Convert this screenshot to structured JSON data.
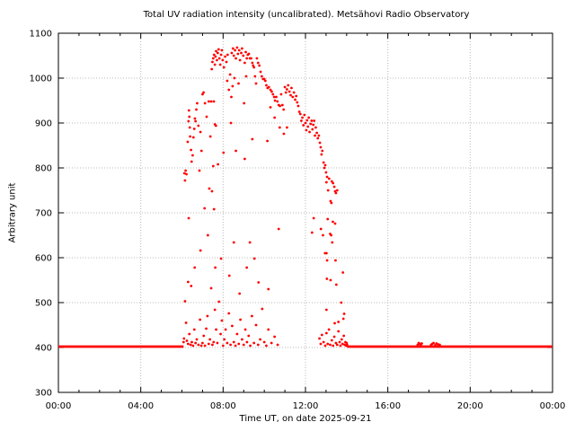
{
  "chart_data": {
    "type": "scatter",
    "title": "Total UV radiation intensity (uncalibrated). Metsähovi Radio Observatory",
    "xlabel": "Time UT, on date 2025-09-21",
    "ylabel": "Arbitrary unit",
    "x_range_hours": [
      0,
      24
    ],
    "ylim": [
      300,
      1100
    ],
    "grid": "dotted-at-major-ticks",
    "legend": "none",
    "x_ticks": [
      {
        "hour": 0,
        "label": "00:00"
      },
      {
        "hour": 4,
        "label": "04:00"
      },
      {
        "hour": 8,
        "label": "08:00"
      },
      {
        "hour": 12,
        "label": "12:00"
      },
      {
        "hour": 16,
        "label": "16:00"
      },
      {
        "hour": 20,
        "label": "20:00"
      },
      {
        "hour": 24,
        "label": "00:00"
      }
    ],
    "x_minor_step_hours": 1,
    "y_ticks": [
      300,
      400,
      500,
      600,
      700,
      800,
      900,
      1000,
      1100
    ],
    "colors": {
      "marker": "#ff0000",
      "grid": "#b8b8b8",
      "axis": "#000000",
      "background": "#ffffff"
    },
    "marker": {
      "shape": "filled-circle",
      "radius_px": 1.4
    },
    "baseline_segments": [
      {
        "start_hour": 0.0,
        "end_hour": 6.08,
        "value": 402
      },
      {
        "start_hour": 14.02,
        "end_hour": 24.0,
        "value": 402
      }
    ],
    "points": [
      [
        6.08,
        412
      ],
      [
        6.1,
        420
      ],
      [
        6.12,
        788
      ],
      [
        6.15,
        772
      ],
      [
        6.18,
        794
      ],
      [
        6.22,
        786
      ],
      [
        6.28,
        858
      ],
      [
        6.32,
        904
      ],
      [
        6.34,
        928
      ],
      [
        6.36,
        914
      ],
      [
        6.38,
        890
      ],
      [
        6.4,
        870
      ],
      [
        6.44,
        840
      ],
      [
        6.47,
        814
      ],
      [
        6.52,
        828
      ],
      [
        6.56,
        868
      ],
      [
        6.6,
        887
      ],
      [
        6.63,
        910
      ],
      [
        6.66,
        904
      ],
      [
        6.7,
        930
      ],
      [
        6.74,
        944
      ],
      [
        6.8,
        894
      ],
      [
        6.85,
        794
      ],
      [
        6.9,
        880
      ],
      [
        6.95,
        838
      ],
      [
        7.0,
        964
      ],
      [
        7.05,
        968
      ],
      [
        7.12,
        944
      ],
      [
        7.2,
        914
      ],
      [
        7.3,
        948
      ],
      [
        7.33,
        754
      ],
      [
        7.38,
        870
      ],
      [
        7.42,
        948
      ],
      [
        7.46,
        748
      ],
      [
        7.52,
        804
      ],
      [
        7.55,
        948
      ],
      [
        7.6,
        897
      ],
      [
        7.65,
        894
      ],
      [
        7.75,
        808
      ],
      [
        7.45,
        1020
      ],
      [
        7.48,
        1036
      ],
      [
        7.52,
        1044
      ],
      [
        7.56,
        1052
      ],
      [
        7.6,
        1030
      ],
      [
        7.63,
        1048
      ],
      [
        7.66,
        1060
      ],
      [
        7.7,
        1040
      ],
      [
        7.74,
        1056
      ],
      [
        7.78,
        1064
      ],
      [
        7.82,
        1044
      ],
      [
        7.86,
        1030
      ],
      [
        7.9,
        1052
      ],
      [
        7.94,
        1062
      ],
      [
        7.98,
        1040
      ],
      [
        8.04,
        1024
      ],
      [
        8.1,
        1048
      ],
      [
        8.16,
        1036
      ],
      [
        8.22,
        1052
      ],
      [
        8.2,
        994
      ],
      [
        8.28,
        974
      ],
      [
        8.34,
        1008
      ],
      [
        8.4,
        958
      ],
      [
        8.46,
        982
      ],
      [
        8.55,
        1000
      ],
      [
        8.75,
        988
      ],
      [
        9.02,
        944
      ],
      [
        9.12,
        1004
      ],
      [
        8.02,
        834
      ],
      [
        8.38,
        900
      ],
      [
        8.62,
        838
      ],
      [
        9.05,
        820
      ],
      [
        9.42,
        864
      ],
      [
        8.42,
        1056
      ],
      [
        8.48,
        1066
      ],
      [
        8.52,
        1050
      ],
      [
        8.58,
        1062
      ],
      [
        8.62,
        1044
      ],
      [
        8.68,
        1068
      ],
      [
        8.72,
        1054
      ],
      [
        8.78,
        1062
      ],
      [
        8.82,
        1040
      ],
      [
        8.88,
        1056
      ],
      [
        8.92,
        1066
      ],
      [
        8.98,
        1050
      ],
      [
        9.05,
        1034
      ],
      [
        9.1,
        1058
      ],
      [
        9.15,
        1044
      ],
      [
        9.2,
        1052
      ],
      [
        9.25,
        1054
      ],
      [
        9.3,
        1044
      ],
      [
        9.36,
        1044
      ],
      [
        9.42,
        1034
      ],
      [
        9.46,
        1028
      ],
      [
        9.5,
        1024
      ],
      [
        9.55,
        1004
      ],
      [
        9.6,
        988
      ],
      [
        9.64,
        1044
      ],
      [
        9.7,
        1034
      ],
      [
        9.76,
        1028
      ],
      [
        9.82,
        1014
      ],
      [
        9.88,
        1004
      ],
      [
        9.94,
        998
      ],
      [
        10.0,
        998
      ],
      [
        10.05,
        994
      ],
      [
        10.1,
        984
      ],
      [
        10.16,
        978
      ],
      [
        10.22,
        980
      ],
      [
        10.3,
        974
      ],
      [
        10.36,
        970
      ],
      [
        10.42,
        964
      ],
      [
        10.48,
        958
      ],
      [
        10.52,
        950
      ],
      [
        10.58,
        958
      ],
      [
        10.64,
        948
      ],
      [
        10.7,
        940
      ],
      [
        10.76,
        938
      ],
      [
        10.82,
        964
      ],
      [
        10.88,
        940
      ],
      [
        10.94,
        930
      ],
      [
        10.15,
        860
      ],
      [
        10.3,
        935
      ],
      [
        10.5,
        912
      ],
      [
        10.75,
        890
      ],
      [
        10.95,
        876
      ],
      [
        11.1,
        890
      ],
      [
        11.0,
        980
      ],
      [
        11.05,
        968
      ],
      [
        11.1,
        975
      ],
      [
        11.16,
        984
      ],
      [
        11.22,
        970
      ],
      [
        11.28,
        962
      ],
      [
        11.32,
        978
      ],
      [
        11.38,
        958
      ],
      [
        11.44,
        968
      ],
      [
        11.5,
        952
      ],
      [
        11.55,
        960
      ],
      [
        11.6,
        946
      ],
      [
        11.65,
        938
      ],
      [
        11.7,
        925
      ],
      [
        11.75,
        920
      ],
      [
        11.8,
        905
      ],
      [
        11.85,
        912
      ],
      [
        11.9,
        895
      ],
      [
        11.95,
        918
      ],
      [
        12.0,
        900
      ],
      [
        12.04,
        884
      ],
      [
        12.08,
        906
      ],
      [
        12.12,
        892
      ],
      [
        12.16,
        912
      ],
      [
        12.2,
        880
      ],
      [
        12.25,
        898
      ],
      [
        12.3,
        905
      ],
      [
        12.34,
        886
      ],
      [
        12.38,
        896
      ],
      [
        12.42,
        905
      ],
      [
        12.46,
        872
      ],
      [
        12.5,
        890
      ],
      [
        12.55,
        878
      ],
      [
        12.6,
        866
      ],
      [
        12.65,
        872
      ],
      [
        12.7,
        856
      ],
      [
        12.74,
        846
      ],
      [
        12.78,
        830
      ],
      [
        12.82,
        838
      ],
      [
        12.88,
        812
      ],
      [
        12.92,
        800
      ],
      [
        12.96,
        806
      ],
      [
        13.0,
        790
      ],
      [
        13.05,
        780
      ],
      [
        13.02,
        768
      ],
      [
        13.1,
        750
      ],
      [
        13.15,
        776
      ],
      [
        13.22,
        726
      ],
      [
        13.26,
        722
      ],
      [
        13.28,
        770
      ],
      [
        13.34,
        766
      ],
      [
        13.4,
        758
      ],
      [
        13.44,
        748
      ],
      [
        13.48,
        744
      ],
      [
        13.54,
        750
      ],
      [
        12.32,
        656
      ],
      [
        12.4,
        688
      ],
      [
        12.75,
        664
      ],
      [
        12.85,
        650
      ],
      [
        12.95,
        610
      ],
      [
        13.05,
        594
      ],
      [
        13.08,
        686
      ],
      [
        13.2,
        653
      ],
      [
        13.25,
        650
      ],
      [
        13.3,
        634
      ],
      [
        13.33,
        680
      ],
      [
        13.44,
        676
      ],
      [
        13.46,
        594
      ],
      [
        13.02,
        610
      ],
      [
        13.82,
        567
      ],
      [
        13.04,
        553
      ],
      [
        13.22,
        550
      ],
      [
        13.5,
        540
      ],
      [
        13.74,
        500
      ],
      [
        13.02,
        484
      ],
      [
        13.84,
        464
      ],
      [
        13.42,
        454
      ],
      [
        13.6,
        457
      ],
      [
        13.88,
        475
      ],
      [
        12.68,
        420
      ],
      [
        12.74,
        408
      ],
      [
        12.8,
        428
      ],
      [
        12.88,
        412
      ],
      [
        12.96,
        404
      ],
      [
        13.02,
        432
      ],
      [
        13.08,
        408
      ],
      [
        13.14,
        440
      ],
      [
        13.2,
        406
      ],
      [
        13.28,
        416
      ],
      [
        13.34,
        404
      ],
      [
        13.4,
        424
      ],
      [
        13.48,
        410
      ],
      [
        13.54,
        406
      ],
      [
        13.6,
        436
      ],
      [
        13.66,
        412
      ],
      [
        13.7,
        404
      ],
      [
        13.76,
        418
      ],
      [
        13.8,
        408
      ],
      [
        13.86,
        426
      ],
      [
        13.9,
        406
      ],
      [
        13.94,
        412
      ],
      [
        13.98,
        404
      ],
      [
        6.15,
        503
      ],
      [
        6.3,
        546
      ],
      [
        6.33,
        688
      ],
      [
        6.45,
        537
      ],
      [
        6.62,
        578
      ],
      [
        6.9,
        616
      ],
      [
        7.1,
        710
      ],
      [
        7.26,
        650
      ],
      [
        7.56,
        708
      ],
      [
        7.62,
        578
      ],
      [
        7.9,
        598
      ],
      [
        8.3,
        560
      ],
      [
        8.52,
        634
      ],
      [
        8.8,
        520
      ],
      [
        9.15,
        578
      ],
      [
        9.3,
        634
      ],
      [
        9.52,
        598
      ],
      [
        9.72,
        545
      ],
      [
        10.2,
        530
      ],
      [
        10.7,
        664
      ],
      [
        6.2,
        455
      ],
      [
        6.24,
        415
      ],
      [
        6.3,
        408
      ],
      [
        6.36,
        430
      ],
      [
        6.42,
        406
      ],
      [
        6.48,
        412
      ],
      [
        6.54,
        404
      ],
      [
        6.6,
        440
      ],
      [
        6.66,
        410
      ],
      [
        6.72,
        418
      ],
      [
        6.8,
        406
      ],
      [
        6.88,
        462
      ],
      [
        6.94,
        404
      ],
      [
        7.0,
        410
      ],
      [
        7.06,
        426
      ],
      [
        7.12,
        404
      ],
      [
        7.18,
        442
      ],
      [
        7.24,
        470
      ],
      [
        7.3,
        408
      ],
      [
        7.36,
        418
      ],
      [
        7.42,
        532
      ],
      [
        7.48,
        406
      ],
      [
        7.54,
        412
      ],
      [
        7.6,
        484
      ],
      [
        7.66,
        440
      ],
      [
        7.72,
        410
      ],
      [
        7.8,
        502
      ],
      [
        7.88,
        430
      ],
      [
        7.94,
        460
      ],
      [
        8.0,
        404
      ],
      [
        8.06,
        418
      ],
      [
        8.12,
        440
      ],
      [
        8.2,
        410
      ],
      [
        8.28,
        476
      ],
      [
        8.36,
        406
      ],
      [
        8.44,
        448
      ],
      [
        8.52,
        412
      ],
      [
        8.6,
        404
      ],
      [
        8.68,
        430
      ],
      [
        8.76,
        408
      ],
      [
        8.84,
        462
      ],
      [
        8.92,
        418
      ],
      [
        9.0,
        406
      ],
      [
        9.08,
        440
      ],
      [
        9.16,
        412
      ],
      [
        9.24,
        426
      ],
      [
        9.32,
        404
      ],
      [
        9.4,
        470
      ],
      [
        9.5,
        410
      ],
      [
        9.6,
        450
      ],
      [
        9.7,
        406
      ],
      [
        9.8,
        418
      ],
      [
        9.9,
        486
      ],
      [
        10.0,
        412
      ],
      [
        10.1,
        404
      ],
      [
        10.2,
        440
      ],
      [
        10.35,
        410
      ],
      [
        10.5,
        424
      ],
      [
        10.65,
        406
      ],
      [
        14.0,
        410
      ],
      [
        14.02,
        406
      ],
      [
        17.45,
        406
      ],
      [
        17.5,
        410
      ],
      [
        17.55,
        408
      ],
      [
        17.6,
        405
      ],
      [
        17.65,
        409
      ],
      [
        18.1,
        406
      ],
      [
        18.16,
        408
      ],
      [
        18.22,
        410
      ],
      [
        18.3,
        405
      ],
      [
        18.36,
        409
      ],
      [
        18.44,
        407
      ],
      [
        18.52,
        406
      ]
    ]
  }
}
